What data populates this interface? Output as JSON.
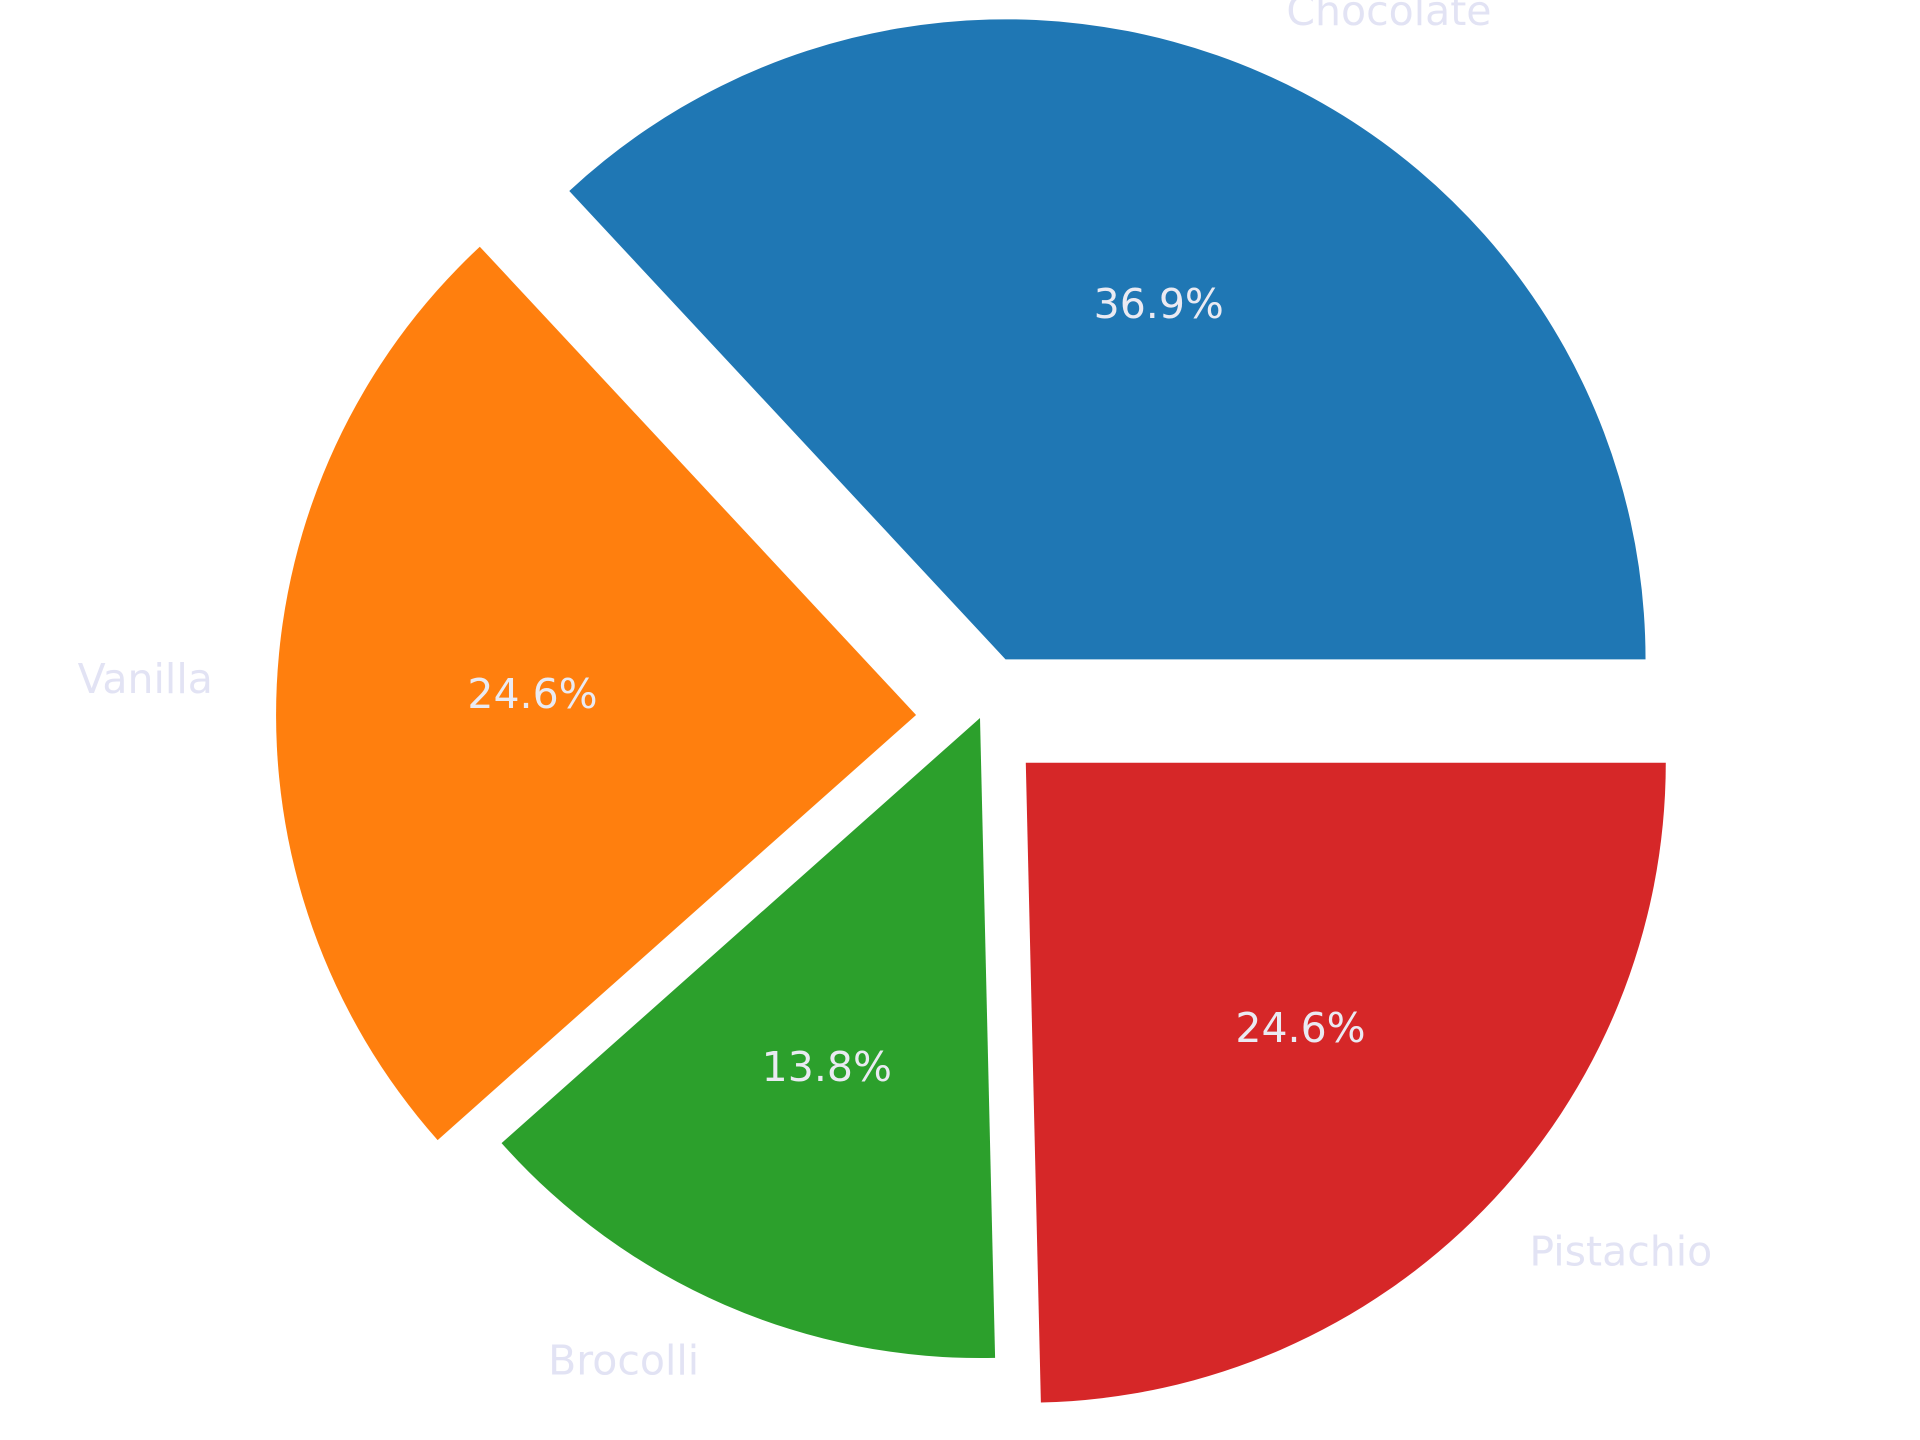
{
  "chart_data": {
    "type": "pie",
    "title": "",
    "categories": [
      "Chocolate",
      "Vanilla",
      "Brocolli",
      "Pistachio"
    ],
    "values": [
      36.9,
      24.6,
      13.8,
      24.6
    ],
    "value_labels": [
      "36.9%",
      "24.6%",
      "13.8%",
      "24.6%"
    ],
    "colors": [
      "#1f77b4",
      "#ff7f0e",
      "#2ca02c",
      "#d62728"
    ],
    "explode": [
      0.1,
      0.1,
      0,
      0.1
    ],
    "start_angle_deg": 0,
    "direction": "counterclockwise",
    "category_label_color": "#e2e3f4",
    "value_label_color": "#eaeaf2",
    "legend": "none"
  }
}
